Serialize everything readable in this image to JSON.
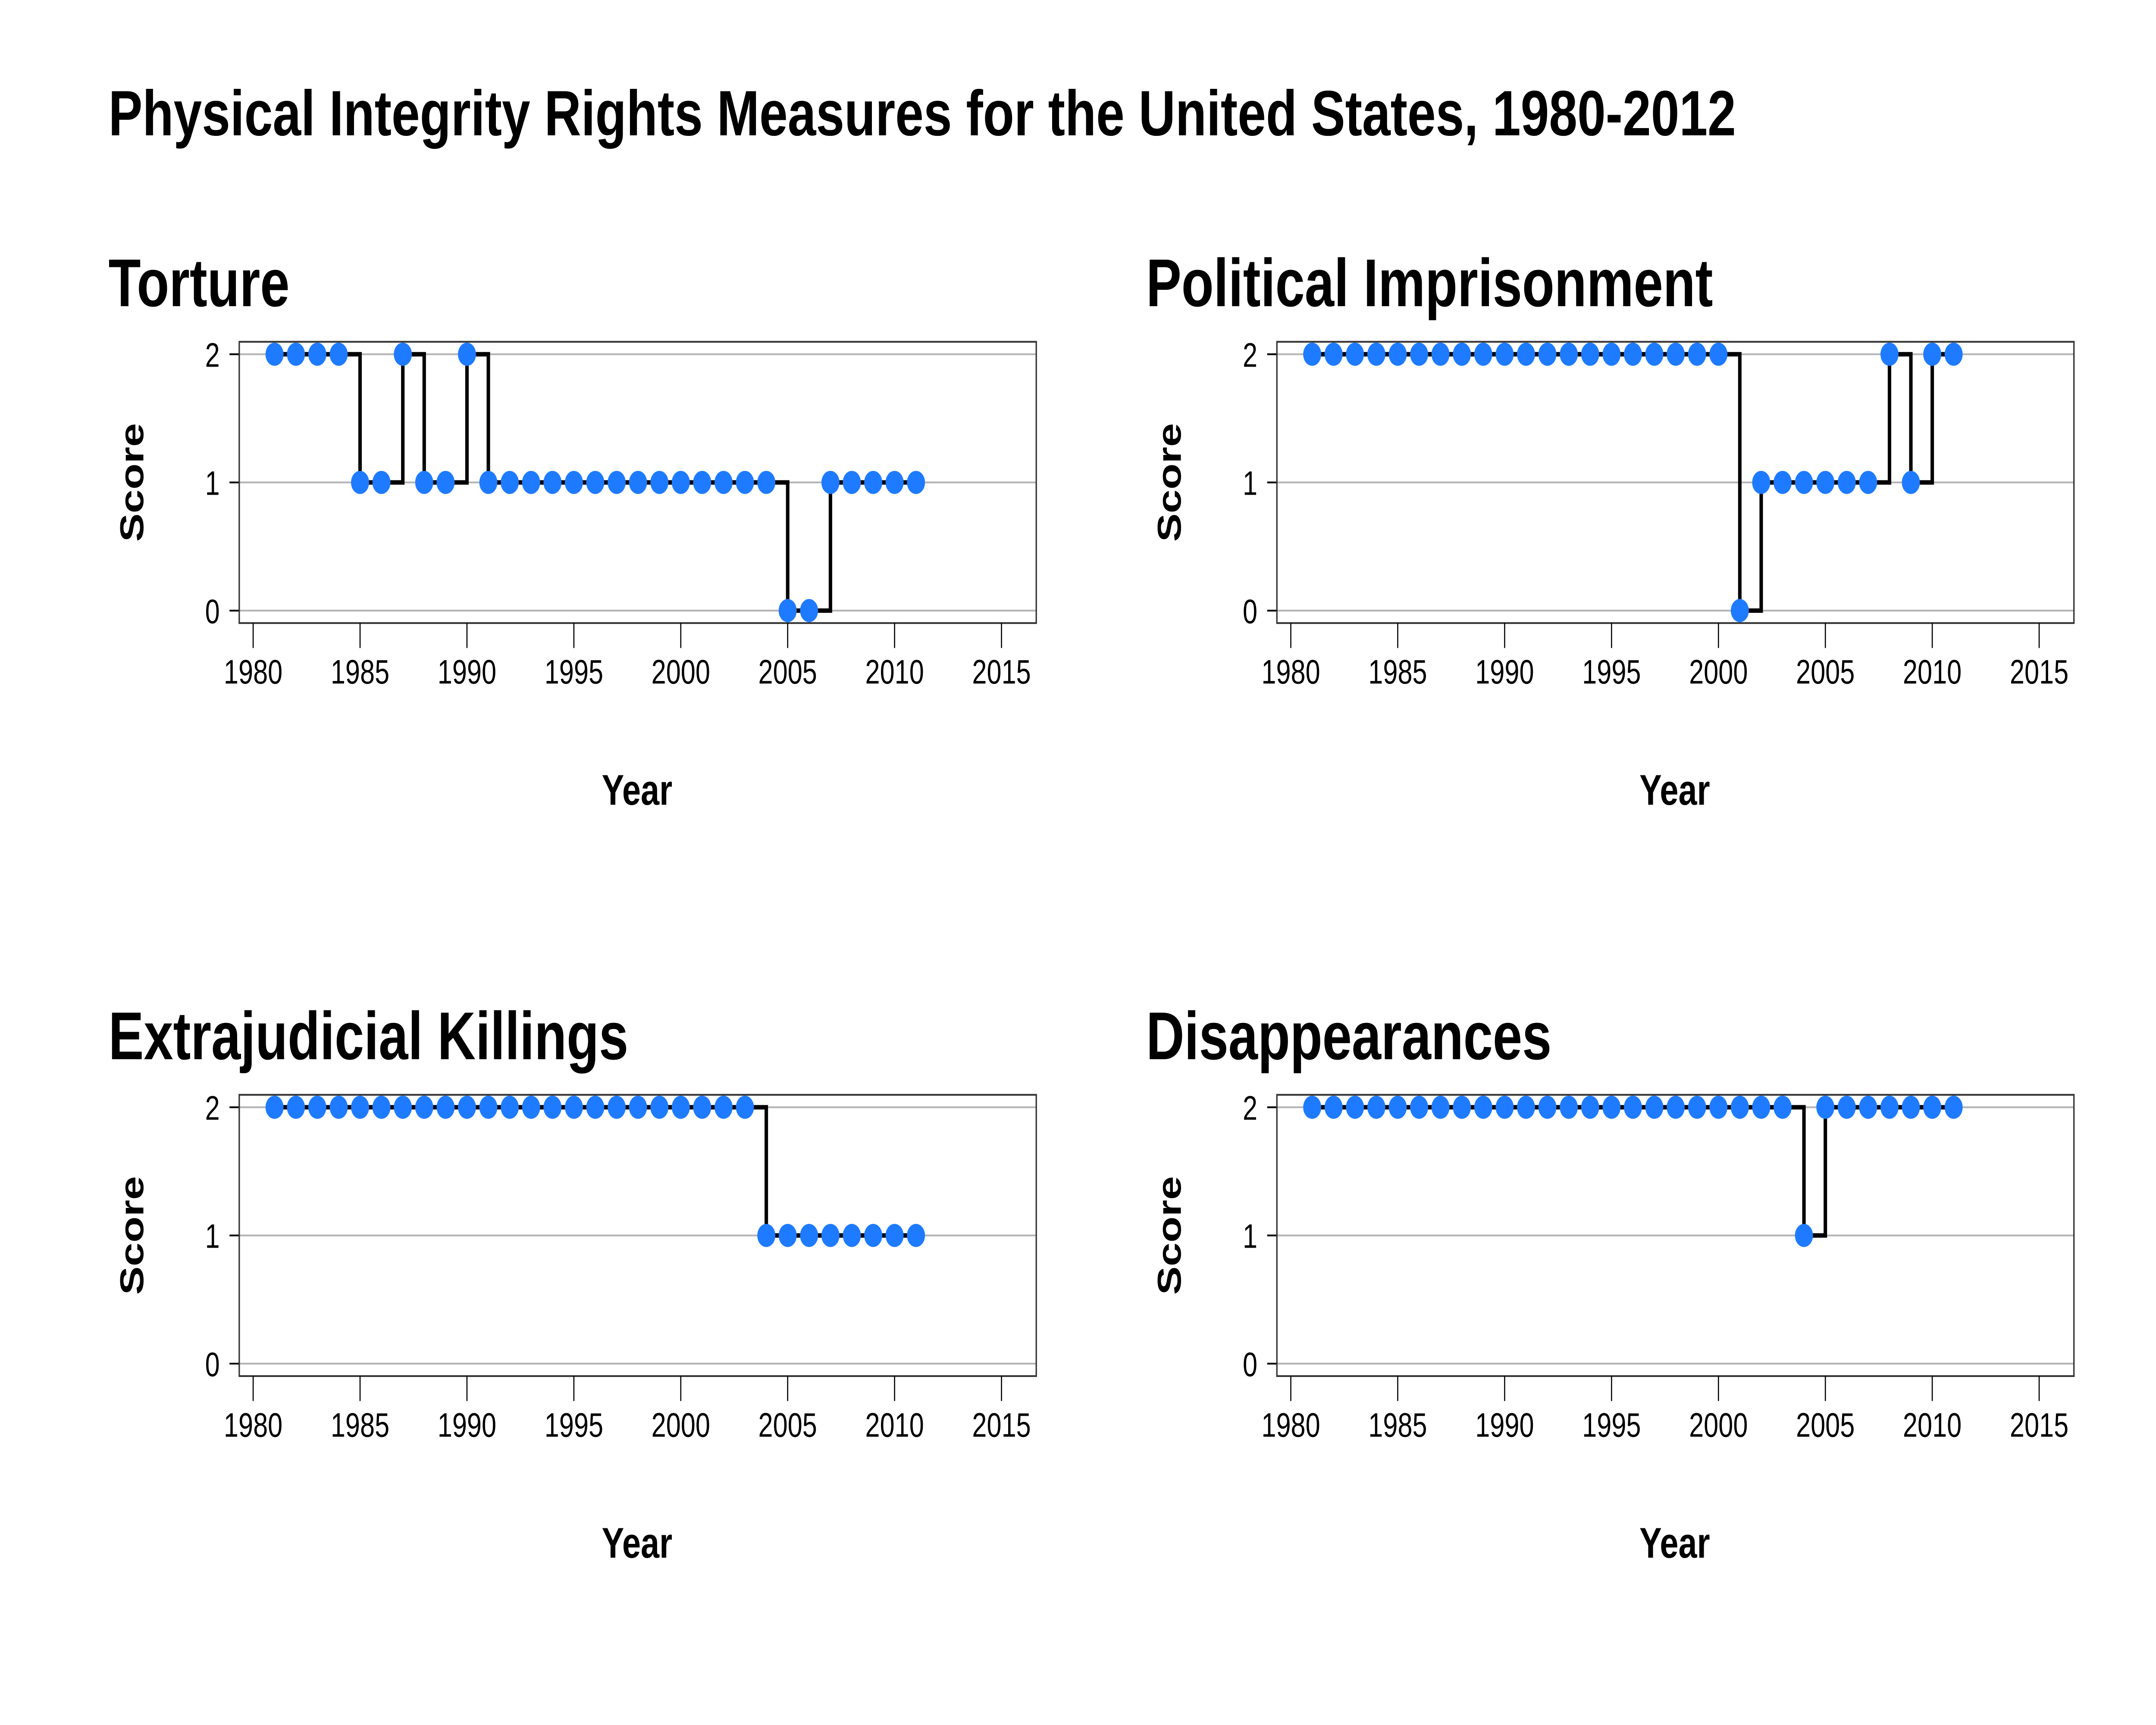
{
  "title": "Physical Integrity Rights Measures for the United States, 1980-2012",
  "chart_data": [
    {
      "type": "line",
      "step": true,
      "title": "Torture",
      "xlabel": "Year",
      "ylabel": "Score",
      "x_ticks": [
        1980,
        1985,
        1990,
        1995,
        2000,
        2005,
        2010,
        2015
      ],
      "y_ticks": [
        0,
        1,
        2
      ],
      "xlim": [
        1978,
        2017
      ],
      "ylim": [
        -0.1,
        2.1
      ],
      "x": [
        1981,
        1982,
        1983,
        1984,
        1985,
        1986,
        1987,
        1988,
        1989,
        1990,
        1991,
        1992,
        1993,
        1994,
        1995,
        1996,
        1997,
        1998,
        1999,
        2000,
        2001,
        2002,
        2003,
        2004,
        2005,
        2006,
        2007,
        2008,
        2009,
        2010,
        2011
      ],
      "y": [
        2,
        2,
        2,
        2,
        1,
        1,
        2,
        1,
        1,
        2,
        1,
        1,
        1,
        1,
        1,
        1,
        1,
        1,
        1,
        1,
        1,
        1,
        1,
        1,
        0,
        0,
        1,
        1,
        1,
        1,
        1
      ],
      "point_color": "#1E7BFF",
      "line_color": "#000000",
      "grid": true
    },
    {
      "type": "line",
      "step": true,
      "title": "Political Imprisonment",
      "xlabel": "Year",
      "ylabel": "Score",
      "x_ticks": [
        1980,
        1985,
        1990,
        1995,
        2000,
        2005,
        2010,
        2015
      ],
      "y_ticks": [
        0,
        1,
        2
      ],
      "xlim": [
        1978,
        2017
      ],
      "ylim": [
        -0.1,
        2.1
      ],
      "x": [
        1981,
        1982,
        1983,
        1984,
        1985,
        1986,
        1987,
        1988,
        1989,
        1990,
        1991,
        1992,
        1993,
        1994,
        1995,
        1996,
        1997,
        1998,
        1999,
        2000,
        2001,
        2002,
        2003,
        2004,
        2005,
        2006,
        2007,
        2008,
        2009,
        2010,
        2011
      ],
      "y": [
        2,
        2,
        2,
        2,
        2,
        2,
        2,
        2,
        2,
        2,
        2,
        2,
        2,
        2,
        2,
        2,
        2,
        2,
        2,
        2,
        0,
        1,
        1,
        1,
        1,
        1,
        1,
        2,
        1,
        2,
        2
      ],
      "point_color": "#1E7BFF",
      "line_color": "#000000",
      "grid": true
    },
    {
      "type": "line",
      "step": true,
      "title": "Extrajudicial Killings",
      "xlabel": "Year",
      "ylabel": "Score",
      "x_ticks": [
        1980,
        1985,
        1990,
        1995,
        2000,
        2005,
        2010,
        2015
      ],
      "y_ticks": [
        0,
        1,
        2
      ],
      "xlim": [
        1978,
        2017
      ],
      "ylim": [
        -0.1,
        2.1
      ],
      "x": [
        1981,
        1982,
        1983,
        1984,
        1985,
        1986,
        1987,
        1988,
        1989,
        1990,
        1991,
        1992,
        1993,
        1994,
        1995,
        1996,
        1997,
        1998,
        1999,
        2000,
        2001,
        2002,
        2003,
        2004,
        2005,
        2006,
        2007,
        2008,
        2009,
        2010,
        2011
      ],
      "y": [
        2,
        2,
        2,
        2,
        2,
        2,
        2,
        2,
        2,
        2,
        2,
        2,
        2,
        2,
        2,
        2,
        2,
        2,
        2,
        2,
        2,
        2,
        2,
        1,
        1,
        1,
        1,
        1,
        1,
        1,
        1
      ],
      "point_color": "#1E7BFF",
      "line_color": "#000000",
      "grid": true
    },
    {
      "type": "line",
      "step": true,
      "title": "Disappearances",
      "xlabel": "Year",
      "ylabel": "Score",
      "x_ticks": [
        1980,
        1985,
        1990,
        1995,
        2000,
        2005,
        2010,
        2015
      ],
      "y_ticks": [
        0,
        1,
        2
      ],
      "xlim": [
        1978,
        2017
      ],
      "ylim": [
        -0.1,
        2.1
      ],
      "x": [
        1981,
        1982,
        1983,
        1984,
        1985,
        1986,
        1987,
        1988,
        1989,
        1990,
        1991,
        1992,
        1993,
        1994,
        1995,
        1996,
        1997,
        1998,
        1999,
        2000,
        2001,
        2002,
        2003,
        2004,
        2005,
        2006,
        2007,
        2008,
        2009,
        2010,
        2011
      ],
      "y": [
        2,
        2,
        2,
        2,
        2,
        2,
        2,
        2,
        2,
        2,
        2,
        2,
        2,
        2,
        2,
        2,
        2,
        2,
        2,
        2,
        2,
        2,
        2,
        1,
        2,
        2,
        2,
        2,
        2,
        2,
        2
      ],
      "point_color": "#1E7BFF",
      "line_color": "#000000",
      "grid": true
    }
  ]
}
